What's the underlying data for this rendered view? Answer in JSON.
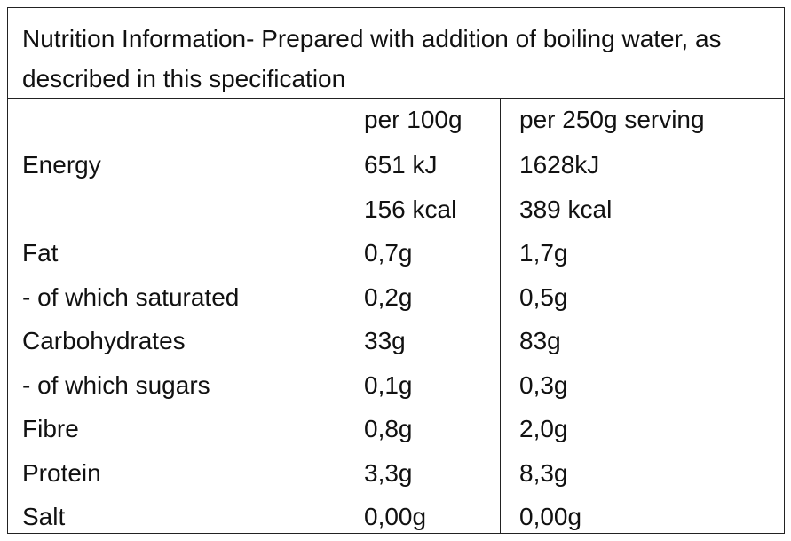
{
  "table": {
    "title": "Nutrition Information- Prepared with addition of boiling water, as described in this specification",
    "header": [
      "per 100g",
      "per 250g serving"
    ],
    "rows": [
      [
        "Energy",
        [
          "651 kJ",
          "156 kcal"
        ],
        [
          "1628kJ",
          "389 kcal"
        ]
      ],
      [
        "Fat",
        "0,7g",
        "1,7g"
      ],
      [
        "- of which saturated",
        "0,2g",
        "0,5g"
      ],
      [
        "Carbohydrates",
        "33g",
        "83g"
      ],
      [
        "- of which sugars",
        "0,1g",
        "0,3g"
      ],
      [
        "Fibre",
        "0,8g",
        "2,0g"
      ],
      [
        "Protein",
        "3,3g",
        "8,3g"
      ],
      [
        "Salt",
        "0,00g",
        "0,00g"
      ]
    ]
  }
}
